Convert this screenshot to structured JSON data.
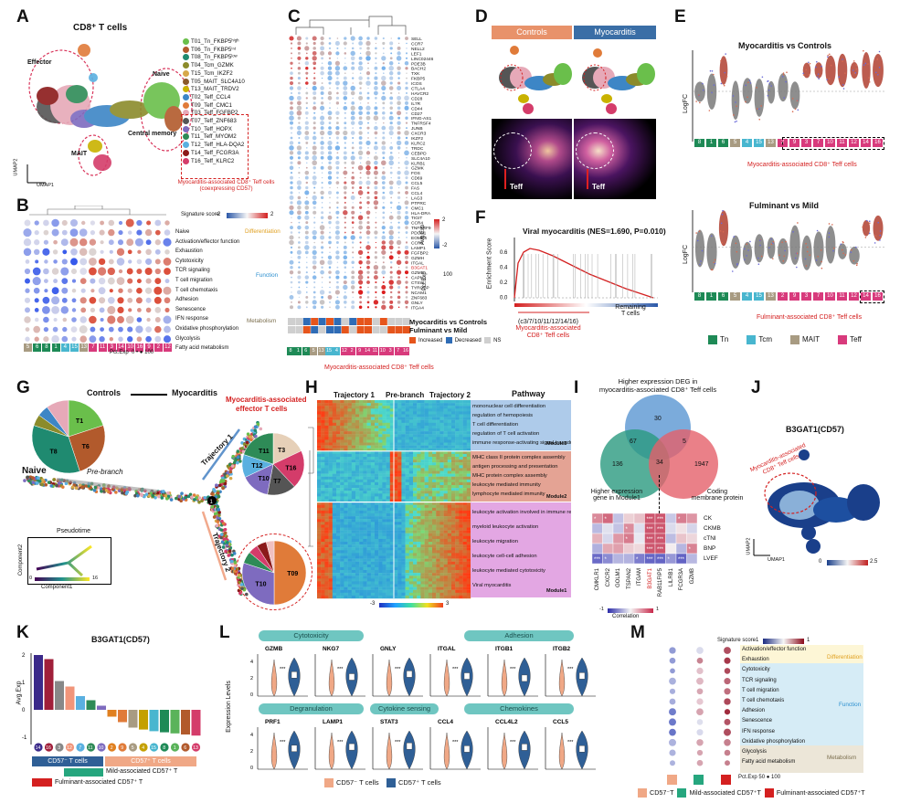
{
  "panels": {
    "a": {
      "letter": "A",
      "title": "CD8⁺ T cells",
      "effector": "Effector",
      "naive": "Naive",
      "central_memory": "Central memory",
      "mait": "MAIT",
      "umap1": "UMAP1",
      "umap2": "UMAP2",
      "legend": [
        {
          "label": "T01_Tn_FKBP5ʰⁱᵍʰ",
          "color": "#6abf4b"
        },
        {
          "label": "T06_Tn_FKBP5ⁱⁿᵗ",
          "color": "#b25a2c"
        },
        {
          "label": "T08_Tn_FKBP5ˡᵒʷ",
          "color": "#1f8a70"
        },
        {
          "label": "T04_Tcm_GZMK",
          "color": "#8b8b2b"
        },
        {
          "label": "T15_Tcm_IKZF2",
          "color": "#d7a84a"
        },
        {
          "label": "T05_MAIT_SLC4A10",
          "color": "#8a5a2b"
        },
        {
          "label": "T13_MAIT_TRDV2",
          "color": "#c9b200"
        },
        {
          "label": "T02_Teff_CCL4",
          "color": "#3d86c6"
        },
        {
          "label": "T09_Teff_CMC1",
          "color": "#e07b39"
        },
        {
          "label": "T03_Teff_FGFBP2",
          "color": "#e6a9b8"
        },
        {
          "label": "T07_Teff_ZNF683",
          "color": "#555555"
        },
        {
          "label": "T10_Teff_HOPX",
          "color": "#7e6bbf"
        },
        {
          "label": "T11_Teff_MYOM2",
          "color": "#2e8b57"
        },
        {
          "label": "T12_Teff_HLA-DQA2",
          "color": "#5ab0e0"
        },
        {
          "label": "T14_Teff_FCGR3A",
          "color": "#8b1a1a"
        },
        {
          "label": "T16_Teff_KLRC2",
          "color": "#d43c6a"
        }
      ],
      "note1": "Myocarditis-associated CD8⁺ Teff cells",
      "note2": "(coexpressing CD57)"
    },
    "b": {
      "letter": "B",
      "scale_title": "Signature score",
      "scale_min": "-2",
      "scale_max": "2",
      "pct": "Pct.Exp",
      "pct_min": "0",
      "pct_max": "100",
      "rows": [
        "Naive",
        "Activation/effector function",
        "Exhaustion",
        "Cytotoxicity",
        "TCR signaling",
        "T cell migration",
        "T cell chemotaxis",
        "Adhesion",
        "Senescence",
        "IFN response",
        "Oxidative phosphorylation",
        "Glycolysis",
        "Fatty acid metabolism"
      ],
      "groups": [
        "Differentiation",
        "Function",
        "Metabolism"
      ],
      "columns": [
        "5",
        "6",
        "8",
        "1",
        "4",
        "15",
        "13",
        "7",
        "11",
        "3",
        "14",
        "10",
        "16",
        "9",
        "2",
        "12"
      ]
    },
    "c": {
      "letter": "C",
      "genes": [
        "SELL",
        "CCR7",
        "NELL2",
        "LEF1",
        "LINC02446",
        "PDE3B",
        "BACH2",
        "TXK",
        "FKBP5",
        "ICOS",
        "CTLA4",
        "HAVCR2",
        "CD28",
        "IL7R",
        "CD44",
        "CD27",
        "IFNG-AS1",
        "TNFRSF4",
        "JUNB",
        "CXCR3",
        "IKZF2",
        "KLRC2",
        "TRDC",
        "CEBPD",
        "SLC4A10",
        "KLRB1",
        "GZMK",
        "FOS",
        "CD69",
        "CCL5",
        "FAS",
        "CCL4",
        "LAG3",
        "PTPRC",
        "CMC1",
        "HLA-DRA",
        "TIGIT",
        "CCR4",
        "TNFRSF9",
        "PDCD1",
        "EOMES",
        "CCR5",
        "LAMP1",
        "FGFBP2",
        "GZMH",
        "ITGAL",
        "B3GAT1",
        "GZMB",
        "CAPN2",
        "CTSW",
        "TYROBP",
        "NCAM1",
        "ZNF683",
        "GNLY",
        "ITGA4"
      ],
      "avg_exp": "Avg.Exp",
      "exp_max": "2",
      "exp_min": "-2",
      "pct": "Pct.Exp",
      "pct_max": "100",
      "cmp1": "Myocarditis vs Controls",
      "cmp2": "Fulminant vs Mild",
      "increased": "Increased",
      "decreased": "Decreased",
      "ns": "NS",
      "columns": [
        "8",
        "1",
        "6",
        "5",
        "13",
        "15",
        "4",
        "12",
        "2",
        "9",
        "14",
        "11",
        "10",
        "3",
        "7",
        "16"
      ],
      "footer": "Myocarditis-associated CD8⁺ Teff cells"
    },
    "d": {
      "letter": "D",
      "controls": "Controls",
      "myocarditis": "Myocarditis",
      "teff": "Teff"
    },
    "e": {
      "letter": "E",
      "title1": "Myocarditis vs Controls",
      "title2": "Fulminant vs Mild",
      "ylabel": "LogFC",
      "columns": [
        "8",
        "1",
        "6",
        "5",
        "4",
        "15",
        "13",
        "2",
        "9",
        "3",
        "7",
        "10",
        "11",
        "12",
        "14",
        "16"
      ],
      "note1": "Myocarditis-associated CD8⁺ Teff cells",
      "note2": "Fulminant-associated CD8⁺ Teff cells",
      "legend": [
        {
          "label": "Tn",
          "color": "#1e8a56"
        },
        {
          "label": "Tcm",
          "color": "#48b6cf"
        },
        {
          "label": "MAIT",
          "color": "#a89b82"
        },
        {
          "label": "Teff",
          "color": "#d83a7c"
        }
      ]
    },
    "f": {
      "letter": "F",
      "title": "Viral myocarditis (NES=1.690, P=0.010)",
      "ylabel": "Enrichment Score",
      "left": "(c3/7/10/11/12/14/16)",
      "left2": "Myocarditis-associated",
      "left3": "CD8⁺ Teff cells",
      "right": "Remaining",
      "right2": "T cells",
      "y_ticks": [
        "0.6",
        "0.4",
        "0.2",
        "0.0"
      ]
    },
    "g": {
      "letter": "G",
      "controls": "Controls",
      "myocarditis": "Myocarditis",
      "eff_title": "Myocarditis-associated",
      "eff_title2": "effector T cells",
      "naive": "Naive",
      "prebranch": "Pre-branch",
      "traj1": "Trajectory 1",
      "traj2": "Trajectory 2",
      "pseudotime": "Pseudotime",
      "comp1": "Component1",
      "comp2": "Component2",
      "pt_min": "0",
      "pt_max": "16",
      "pie1": [
        "T1",
        "T6",
        "T8"
      ],
      "pie2": [
        "T3",
        "T16",
        "T7",
        "T10",
        "T12",
        "T11"
      ],
      "pie3": [
        "T09",
        "T10"
      ]
    },
    "h": {
      "letter": "H",
      "traj1": "Trajectory 1",
      "prebranch": "Pre-branch",
      "traj2": "Trajectory 2",
      "pathway": "Pathway",
      "module3": [
        "mononuclear cell differentiation",
        "regulation of hemopoiesis",
        "T cell differentiation",
        "regulation of T cell activation",
        "immune response-activating signal transduction"
      ],
      "module2": [
        "MHC class II protein complex assembly",
        "antigen processing and presentation",
        "MHC protein complex assembly",
        "leukocyte mediated immunity",
        "lymphocyte mediated immunity"
      ],
      "module1": [
        "leukocyte activation involved in immune response",
        "myeloid leukocyte activation",
        "leukocyte migration",
        "leukocyte cell-cell adhesion",
        "leukocyte mediated cytotoxicity",
        "Viral myocarditis"
      ],
      "m3": "Module3",
      "m2": "Module2",
      "m1": "Module1",
      "scale_min": "-3",
      "scale_max": "3"
    },
    "i": {
      "letter": "I",
      "venn_title": "Higher expression DEG in",
      "venn_title2": "myocarditis-associated CD8⁺ Teff cells",
      "left": "Higher expression",
      "left2": "gene in Module1",
      "right": "Coding",
      "right2": "membrane protein",
      "n30": "30",
      "n67": "67",
      "n5": "5",
      "n136": "136",
      "n34": "34",
      "n1947": "1947",
      "rows": [
        "CK",
        "CKMB",
        "cTNI",
        "BNP",
        "LVEF"
      ],
      "cols": [
        "CMKLR1",
        "CXCR2",
        "GOLM1",
        "TSPAN2",
        "ITGAM",
        "B3GAT1",
        "RAB11FIP5",
        "LILRB1",
        "FCGR3A",
        "GZMB"
      ],
      "corr": "Correlation",
      "corr_min": "-1",
      "corr_max": "1"
    },
    "j": {
      "letter": "J",
      "title": "B3GAT1(CD57)",
      "note": "Myocarditis-associated",
      "note2": "CD8⁺ Teff cells",
      "umap1": "UMAP1",
      "umap2": "UMAP2",
      "min": "0",
      "max": "2.5"
    },
    "k": {
      "letter": "K",
      "title": "B3GAT1(CD57)",
      "ylabel": "Avg.Exp",
      "neg": "CD57⁻ T cells",
      "pos": "CD57⁺ T cells",
      "mild": "Mild-associated CD57⁺ T",
      "fulm": "Fulminant-associated CD57⁺ T",
      "y_ticks": [
        "2",
        "1",
        "0",
        "-1"
      ],
      "columns": [
        "14",
        "16",
        "3",
        "12",
        "7",
        "11",
        "10",
        "2",
        "9",
        "5",
        "4",
        "15",
        "8",
        "1",
        "6",
        "13"
      ]
    },
    "l": {
      "letter": "L",
      "ylabel": "Expression Levels",
      "groups": [
        "Cytotoxicity",
        "Adhesion",
        "Degranulation",
        "Cytokine sensing",
        "Chemokines"
      ],
      "genes_top": [
        "GZMB",
        "NKG7",
        "GNLY",
        "ITGAL",
        "ITGB1",
        "ITGB2"
      ],
      "genes_bot": [
        "PRF1",
        "LAMP1",
        "STAT3",
        "CCL4",
        "CCL4L2",
        "CCL5"
      ],
      "sig": "***",
      "neg": "CD57⁻ T cells",
      "pos": "CD57⁺ T cells",
      "y_ticks": [
        "4",
        "2",
        "0"
      ]
    },
    "m": {
      "letter": "M",
      "scale_title": "Signature score",
      "scale_min": "-1",
      "scale_max": "1",
      "pct": "Pct.Exp",
      "pct_min": "50",
      "pct_mid": "100",
      "rows": [
        "Activation/effector function",
        "Exhaustion",
        "Cytotoxicity",
        "TCR signaling",
        "T cell migration",
        "T cell chemotaxis",
        "Adhesion",
        "Senescence",
        "IFN response",
        "Oxidative phosphorylation",
        "Glycolysis",
        "Fatty acid metabolism"
      ],
      "groups": [
        "Differentiation",
        "Function",
        "Metabolism"
      ],
      "legend": [
        "CD57⁻T",
        "Mild-associated CD57⁺T",
        "Fulminant-associated CD57⁺T"
      ]
    }
  },
  "colors": {
    "tn": "#1e8a56",
    "tcm": "#48b6cf",
    "mait": "#a89b82",
    "teff": "#d83a7c",
    "red": "#d42020",
    "blue": "#2b58a8"
  }
}
